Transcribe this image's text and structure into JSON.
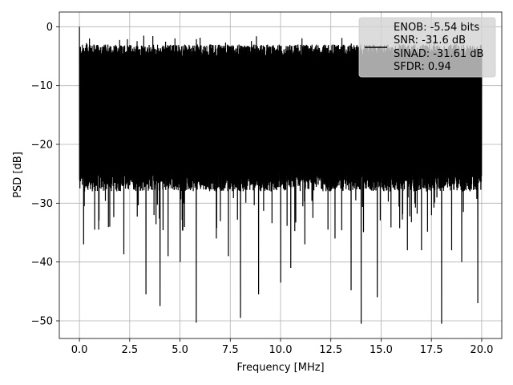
{
  "chart_data": {
    "type": "line",
    "title": "",
    "xlabel": "Frequency [MHz]",
    "ylabel": "PSD [dB]",
    "xlim": [
      -1.0,
      21.0
    ],
    "ylim": [
      -53.0,
      2.5
    ],
    "xticks": [
      0.0,
      2.5,
      5.0,
      7.5,
      10.0,
      12.5,
      15.0,
      17.5,
      20.0
    ],
    "xtick_labels": [
      "0.0",
      "2.5",
      "5.0",
      "7.5",
      "10.0",
      "12.5",
      "15.0",
      "17.5",
      "20.0"
    ],
    "yticks": [
      0,
      -10,
      -20,
      -30,
      -40,
      -50
    ],
    "ytick_labels": [
      "0",
      "−10",
      "−20",
      "−30",
      "−40",
      "−50"
    ],
    "grid": true,
    "legend_position": "top-right",
    "legend_lines": [
      "ENOB: -5.54 bits",
      "SNR: -31.6 dB",
      "SINAD: -31.61 dB",
      "SFDR: 0.94"
    ],
    "line_color": "#000000",
    "series": [
      {
        "x_start": 0.0,
        "x_end": 20.0,
        "peak_dB": 0.0,
        "upper_envelope_dB": [
          -5,
          -3
        ],
        "lower_envelope_dB": [
          -28,
          -25
        ],
        "deep_nulls": [
          [
            0.2,
            -37
          ],
          [
            0.75,
            -34.5
          ],
          [
            0.95,
            -34.5
          ],
          [
            1.5,
            -34
          ],
          [
            2.2,
            -38.7
          ],
          [
            3.3,
            -45.5
          ],
          [
            4.0,
            -47.5
          ],
          [
            4.4,
            -39
          ],
          [
            5.0,
            -40
          ],
          [
            5.8,
            -50.3
          ],
          [
            6.8,
            -36
          ],
          [
            7.4,
            -39
          ],
          [
            8.0,
            -49.5
          ],
          [
            8.9,
            -45.5
          ],
          [
            10.0,
            -43.5
          ],
          [
            10.5,
            -41
          ],
          [
            11.2,
            -37
          ],
          [
            12.7,
            -36
          ],
          [
            13.5,
            -44.8
          ],
          [
            14.0,
            -50.5
          ],
          [
            14.8,
            -46
          ],
          [
            16.3,
            -38
          ],
          [
            17.0,
            -38
          ],
          [
            18.0,
            -50.5
          ],
          [
            18.5,
            -38
          ],
          [
            19.0,
            -40
          ],
          [
            19.8,
            -47
          ]
        ]
      }
    ]
  }
}
